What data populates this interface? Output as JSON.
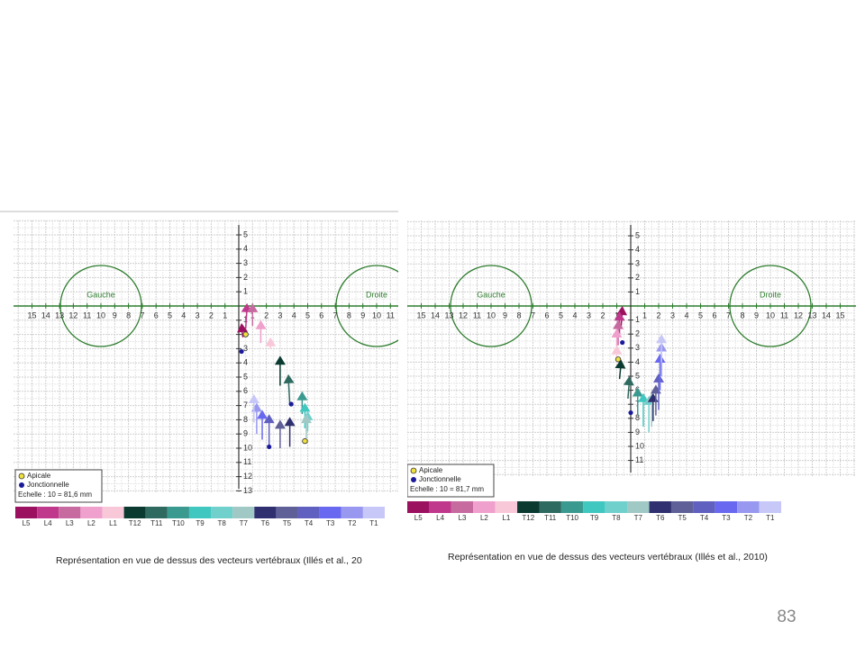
{
  "panels": [
    {
      "x_ticks_left": [
        "15",
        "14",
        "13",
        "12",
        "11",
        "10",
        "9",
        "8",
        "7",
        "6",
        "5",
        "4",
        "3",
        "2",
        "1"
      ],
      "x_ticks_right": [
        "1",
        "2",
        "3",
        "4",
        "5",
        "6",
        "7",
        "8",
        "9",
        "10",
        "11"
      ],
      "y_ticks_up": [
        "5",
        "4",
        "3",
        "2",
        "1"
      ],
      "y_ticks_down": [
        "1",
        "2",
        "3",
        "4",
        "5",
        "6",
        "7",
        "8",
        "9",
        "10",
        "11",
        "12",
        "13"
      ],
      "circle_left": "Gauche",
      "circle_right": "Droite",
      "legend": {
        "apicale": "Apicale",
        "jonctionnelle": "Jonctionnelle",
        "scale": "Echelle : 10 = 81,6 mm"
      },
      "caption": "Représentation en vue de dessus des vecteurs vertébraux (Illés et al., 20"
    },
    {
      "x_ticks_left": [
        "15",
        "14",
        "13",
        "12",
        "11",
        "10",
        "9",
        "8",
        "7",
        "6",
        "5",
        "4",
        "3",
        "2",
        "1"
      ],
      "x_ticks_right": [
        "1",
        "2",
        "3",
        "4",
        "5",
        "6",
        "7",
        "8",
        "9",
        "10",
        "11",
        "12",
        "13",
        "14",
        "15"
      ],
      "y_ticks_up": [
        "5",
        "4",
        "3",
        "2",
        "1"
      ],
      "y_ticks_down": [
        "1",
        "2",
        "3",
        "4",
        "5",
        "6",
        "7",
        "8",
        "9",
        "10",
        "11"
      ],
      "circle_left": "Gauche",
      "circle_right": "Droite",
      "legend": {
        "apicale": "Apicale",
        "jonctionnelle": "Jonctionnelle",
        "scale": "Echelle : 10 = 81,7 mm"
      },
      "caption": "Représentation en vue de dessus des vecteurs vertébraux (Illés et al., 2010)"
    }
  ],
  "color_bar": [
    "L5",
    "L4",
    "L3",
    "L2",
    "L1",
    "T12",
    "T11",
    "T10",
    "T9",
    "T8",
    "T7",
    "T6",
    "T5",
    "T4",
    "T3",
    "T2",
    "T1"
  ],
  "color_bar_colors": [
    "#9c1060",
    "#c0388c",
    "#c76aa0",
    "#f0a0cc",
    "#f8c8d8",
    "#0a3a30",
    "#2e6a60",
    "#3a9a90",
    "#40c8c0",
    "#70d0cc",
    "#a0c8c4",
    "#303070",
    "#606098",
    "#6060c0",
    "#6868f0",
    "#9898f0",
    "#c8c8f8"
  ],
  "page_number": "83"
}
